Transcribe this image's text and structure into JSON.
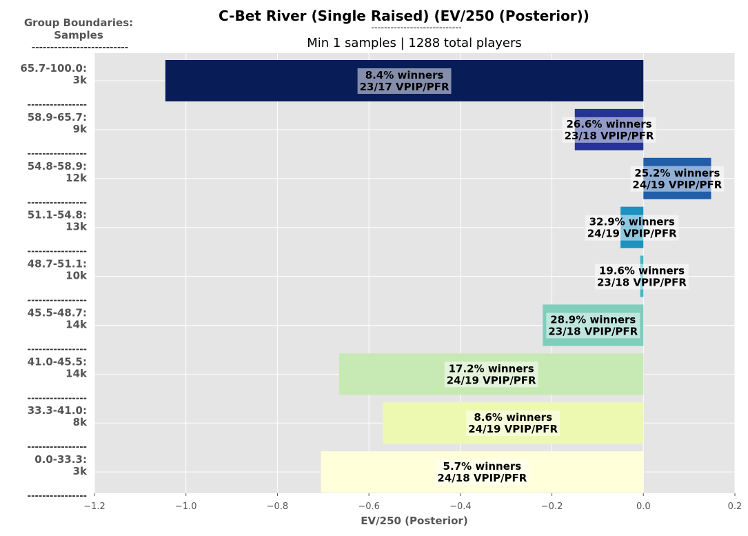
{
  "chart_data": {
    "type": "bar",
    "orientation": "horizontal",
    "title": "C-Bet River (Single Raised) (EV/250 (Posterior))",
    "title_underline": "----------------------------",
    "subtitle": "Min 1 samples | 1288 total players",
    "ylabel_header": [
      "Group Boundaries:",
      "Samples"
    ],
    "ylabel_header_underline": "--------------------------",
    "xlabel": "EV/250 (Posterior)",
    "xlim": [
      -1.2,
      0.2
    ],
    "xticks": [
      -1.2,
      -1.0,
      -0.8,
      -0.6,
      -0.4,
      -0.2,
      0.0,
      0.2
    ],
    "xtick_labels": [
      "−1.2",
      "−1.0",
      "−0.8",
      "−0.6",
      "−0.4",
      "−0.2",
      "0.0",
      "0.2"
    ],
    "grid": true,
    "group_separator": "----------------",
    "bars": [
      {
        "group": "65.7-100.0:",
        "samples": "3k",
        "value": -1.045,
        "winners": "8.4% winners",
        "vpip_pfr": "23/17 VPIP/PFR",
        "color": "#081d58"
      },
      {
        "group": "58.9-65.7:",
        "samples": "9k",
        "value": -0.15,
        "winners": "26.6% winners",
        "vpip_pfr": "23/18 VPIP/PFR",
        "color": "#253494"
      },
      {
        "group": "54.8-58.9:",
        "samples": "12k",
        "value": 0.148,
        "winners": "25.2% winners",
        "vpip_pfr": "24/19 VPIP/PFR",
        "color": "#225ea8"
      },
      {
        "group": "51.1-54.8:",
        "samples": "13k",
        "value": -0.05,
        "winners": "32.9% winners",
        "vpip_pfr": "24/19 VPIP/PFR",
        "color": "#1d91c0"
      },
      {
        "group": "48.7-51.1:",
        "samples": "10k",
        "value": -0.007,
        "winners": "19.6% winners",
        "vpip_pfr": "23/18 VPIP/PFR",
        "color": "#41b6c4"
      },
      {
        "group": "45.5-48.7:",
        "samples": "14k",
        "value": -0.22,
        "winners": "28.9% winners",
        "vpip_pfr": "23/18 VPIP/PFR",
        "color": "#7fcdbb"
      },
      {
        "group": "41.0-45.5:",
        "samples": "14k",
        "value": -0.665,
        "winners": "17.2% winners",
        "vpip_pfr": "24/19 VPIP/PFR",
        "color": "#c7e9b4"
      },
      {
        "group": "33.3-41.0:",
        "samples": "8k",
        "value": -0.57,
        "winners": "8.6% winners",
        "vpip_pfr": "24/19 VPIP/PFR",
        "color": "#edf8b1"
      },
      {
        "group": "0.0-33.3:",
        "samples": "3k",
        "value": -0.705,
        "winners": "5.7% winners",
        "vpip_pfr": "24/18 VPIP/PFR",
        "color": "#ffffd9"
      }
    ]
  }
}
